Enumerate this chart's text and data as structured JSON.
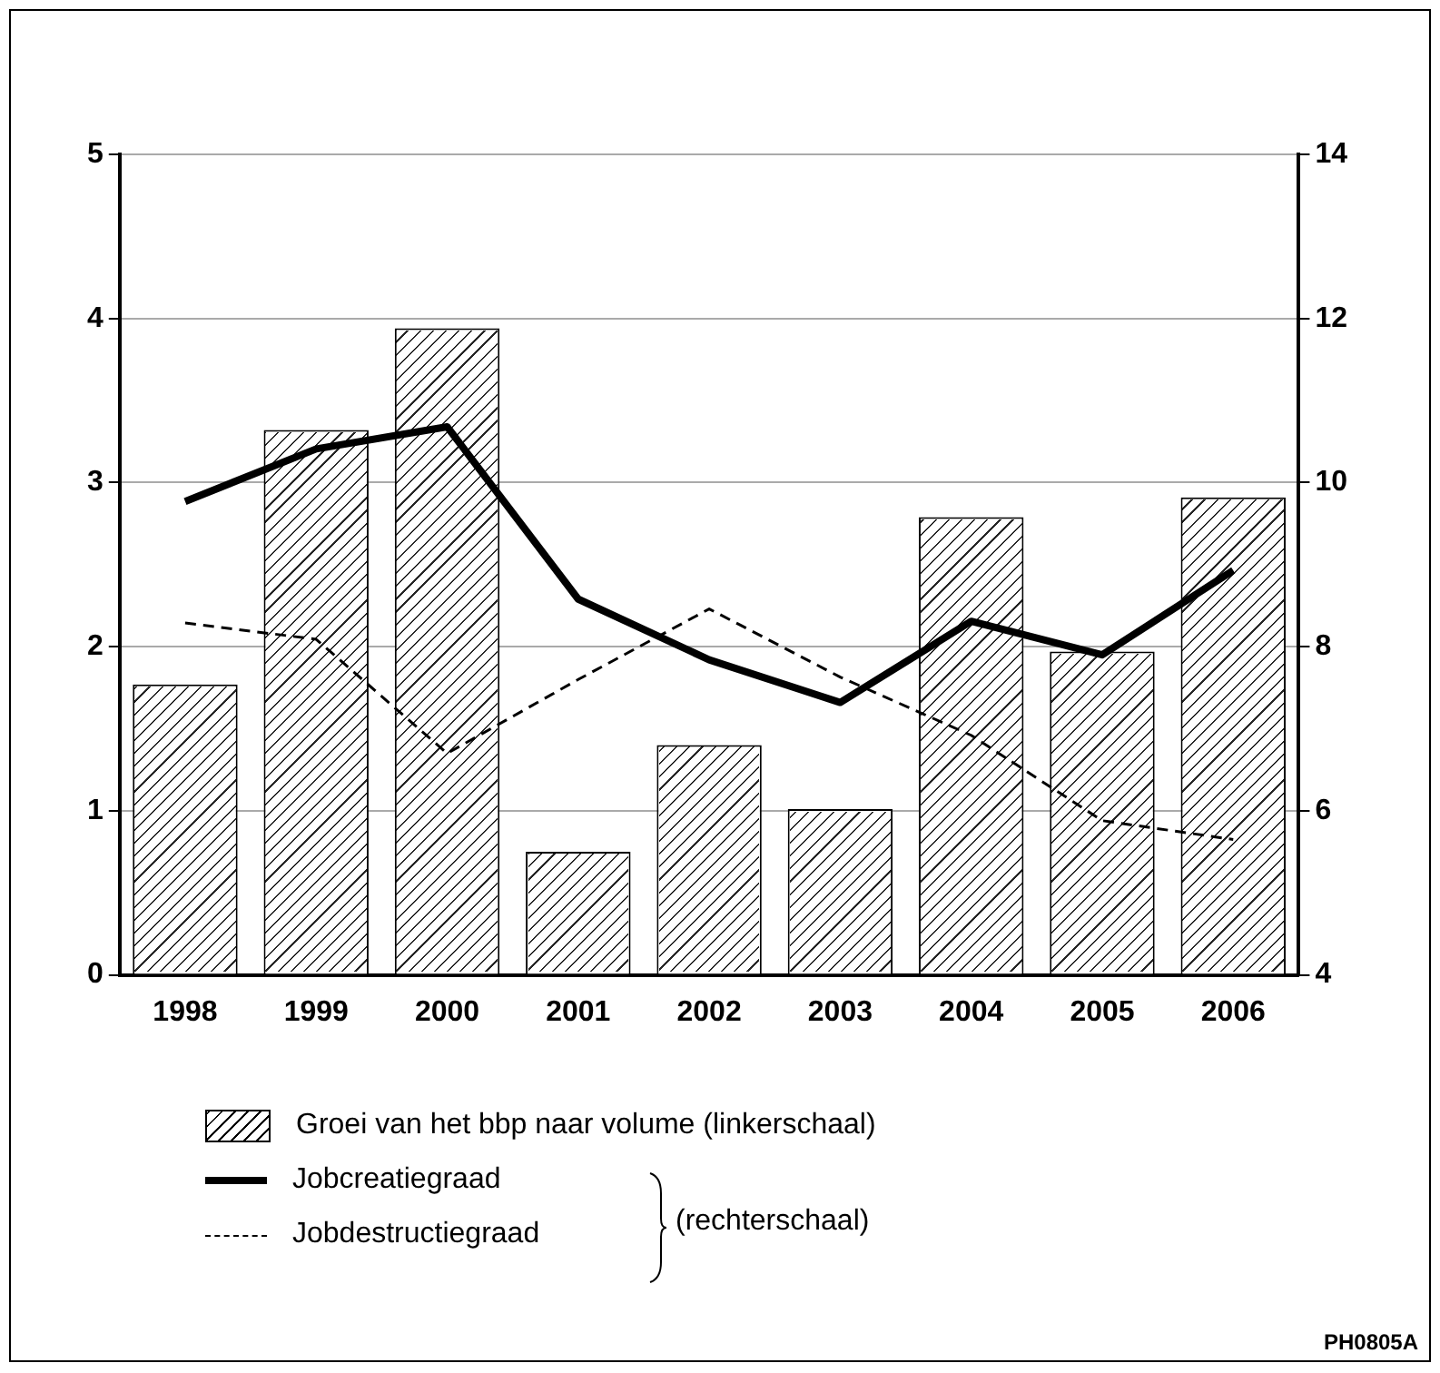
{
  "chart_data": {
    "type": "bar",
    "categories": [
      "1998",
      "1999",
      "2000",
      "2001",
      "2002",
      "2003",
      "2004",
      "2005",
      "2006"
    ],
    "series": [
      {
        "name": "Groei van het bbp naar volume (linkerschaal)",
        "color": "#ffffff",
        "values": [
          1.77,
          3.32,
          3.94,
          0.75,
          1.4,
          1.01,
          2.79,
          1.97,
          2.91
        ]
      },
      {
        "name": "Jobcreatiegraad",
        "type": "line",
        "axis": "y2",
        "color": "#000000",
        "line_style": "solid",
        "values": [
          9.77,
          10.41,
          10.68,
          8.58,
          7.84,
          7.32,
          8.31,
          7.9,
          8.93
        ]
      },
      {
        "name": "Jobdestructiegraad",
        "type": "line",
        "axis": "y2",
        "color": "#000000",
        "line_style": "dashed",
        "values": [
          8.29,
          8.09,
          6.7,
          7.6,
          8.46,
          7.63,
          6.92,
          5.88,
          5.65
        ]
      }
    ],
    "ylim": [
      0,
      5
    ],
    "yticks": [
      0,
      1,
      2,
      3,
      4,
      5
    ],
    "y2lim": [
      4,
      14
    ],
    "y2ticks": [
      4,
      6,
      8,
      10,
      12,
      14
    ],
    "grid": "y",
    "legend": "bottom",
    "marker": "none",
    "annotations": [
      "(rechterschaal)",
      "PH0805A"
    ]
  }
}
